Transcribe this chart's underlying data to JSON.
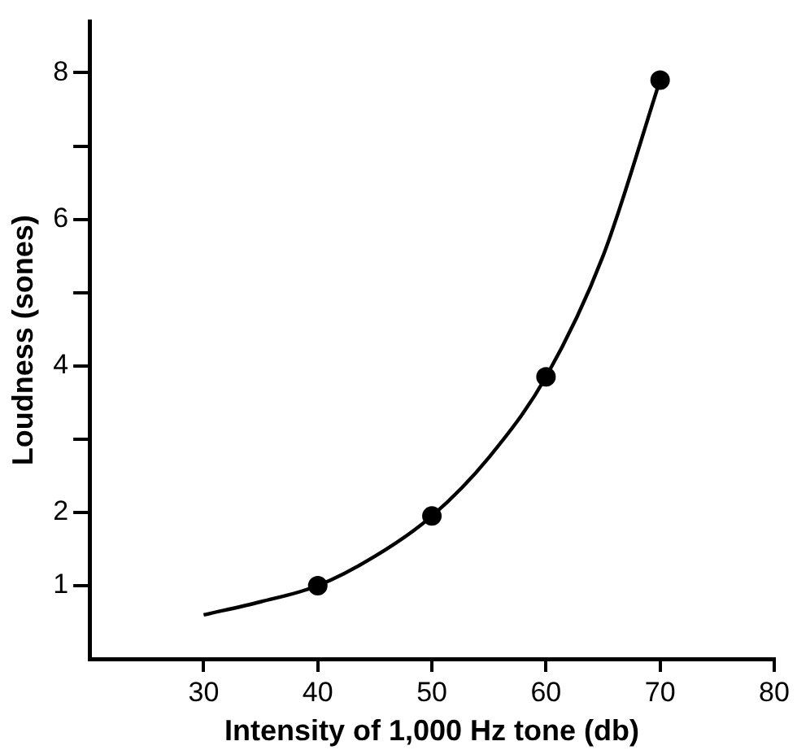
{
  "chart_data": {
    "type": "scatter",
    "xlabel": "Intensity of 1,000 Hz tone (db)",
    "ylabel": "Loudness (sones)",
    "xlim": [
      20,
      80
    ],
    "xticks": [
      30,
      40,
      50,
      60,
      70,
      80
    ],
    "ylim": [
      0,
      8.7
    ],
    "yticks": [
      1,
      2,
      {
        "value": 3,
        "label": null
      },
      4,
      {
        "value": 5,
        "label": null
      },
      6,
      {
        "value": 7,
        "label": null
      },
      8
    ],
    "grid": false,
    "legend": false,
    "series": [
      {
        "type": "line",
        "color": "#000000",
        "marker": "none",
        "x": [
          30,
          35,
          40,
          45,
          50,
          55,
          60,
          65,
          70
        ],
        "values": [
          0.6,
          0.78,
          1.0,
          1.4,
          1.95,
          2.75,
          3.85,
          5.5,
          7.9
        ]
      },
      {
        "color": "#000000",
        "marker": "circle",
        "x": [
          40,
          50,
          60,
          70
        ],
        "values": [
          1.0,
          1.95,
          3.85,
          7.9
        ]
      }
    ]
  }
}
